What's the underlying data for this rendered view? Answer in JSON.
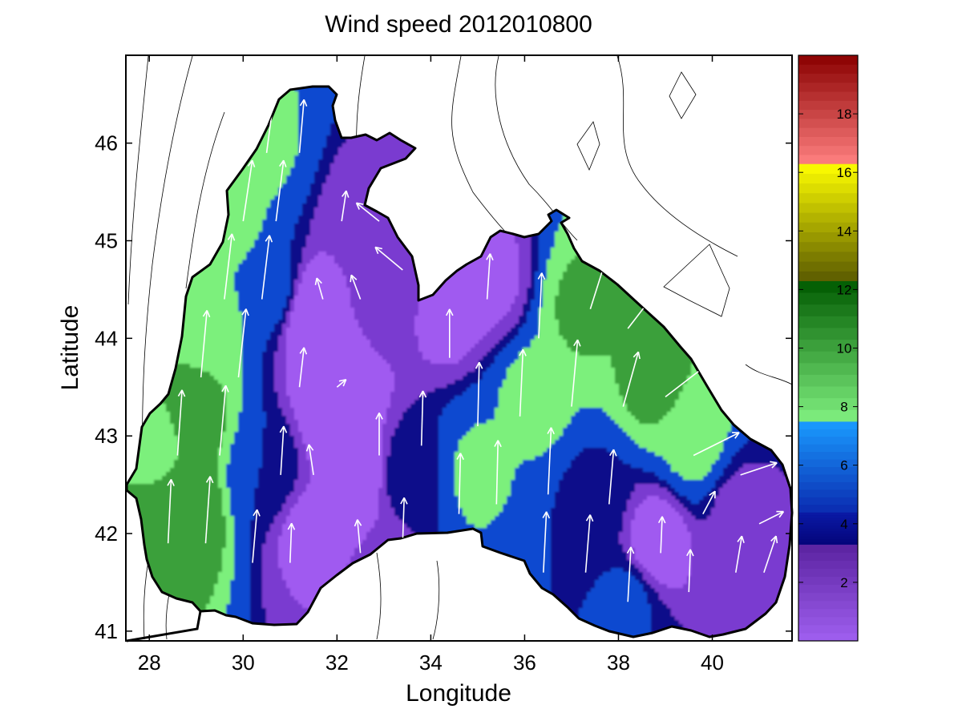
{
  "chart_data": {
    "type": "heatmap",
    "title": "Wind speed 2012010800",
    "xlabel": "Longitude",
    "ylabel": "Latitude",
    "xlim": [
      27.5,
      41.7
    ],
    "ylim": [
      40.9,
      46.9
    ],
    "xticks": [
      28,
      30,
      32,
      34,
      36,
      38,
      40
    ],
    "yticks": [
      41,
      42,
      43,
      44,
      45,
      46
    ],
    "colorbar": {
      "range": [
        0,
        20
      ],
      "ticks": [
        2,
        4,
        6,
        8,
        10,
        12,
        14,
        16,
        18
      ],
      "legend_placement": "right",
      "segments": [
        {
          "from": 0,
          "to": 3.3,
          "color_low": "#a060f0",
          "color_high": "#5a22a0"
        },
        {
          "from": 3.3,
          "to": 4.4,
          "color_low": "#04047a",
          "color_high": "#0a1aa6"
        },
        {
          "from": 4.4,
          "to": 7.5,
          "color_low": "#0a2ab0",
          "color_high": "#1a9cff"
        },
        {
          "from": 7.5,
          "to": 12.3,
          "color_low": "#80f080",
          "color_high": "#005a00"
        },
        {
          "from": 12.3,
          "to": 16.3,
          "color_low": "#5a5a00",
          "color_high": "#ffff00"
        },
        {
          "from": 16.3,
          "to": 20,
          "color_low": "#ff8080",
          "color_high": "#8a0000"
        }
      ]
    },
    "contour_levels": [
      {
        "level": 3.3,
        "color": "#7a3ad0"
      },
      {
        "level": 4.4,
        "color": "#07078a"
      },
      {
        "level": 5.5,
        "color": "#0a4ad0"
      },
      {
        "level": 7.5,
        "color": "#7cf07c"
      },
      {
        "level": 9.0,
        "color": "#3aa03a"
      },
      {
        "level": 10.5,
        "color": "#1a6e1a"
      }
    ],
    "speed_field": [
      {
        "lon": 28.8,
        "lat": 42.2,
        "speed": 10.5
      },
      {
        "lon": 29.0,
        "lat": 43.2,
        "speed": 9.5
      },
      {
        "lon": 29.3,
        "lat": 44.2,
        "speed": 8.5
      },
      {
        "lon": 29.8,
        "lat": 45.2,
        "speed": 8.0
      },
      {
        "lon": 30.4,
        "lat": 46.0,
        "speed": 7.8
      },
      {
        "lon": 28.2,
        "lat": 42.9,
        "speed": 8.8
      },
      {
        "lon": 31.5,
        "lat": 44.2,
        "speed": 1.5
      },
      {
        "lon": 32.0,
        "lat": 43.4,
        "speed": 1.2
      },
      {
        "lon": 32.3,
        "lat": 42.6,
        "speed": 2.0
      },
      {
        "lon": 31.3,
        "lat": 42.0,
        "speed": 3.0
      },
      {
        "lon": 32.5,
        "lat": 45.1,
        "speed": 3.5
      },
      {
        "lon": 33.0,
        "lat": 44.5,
        "speed": 4.2
      },
      {
        "lon": 34.4,
        "lat": 44.4,
        "speed": 2.5
      },
      {
        "lon": 35.3,
        "lat": 44.6,
        "speed": 3.0
      },
      {
        "lon": 35.0,
        "lat": 42.6,
        "speed": 7.8
      },
      {
        "lon": 36.2,
        "lat": 43.4,
        "speed": 8.0
      },
      {
        "lon": 37.2,
        "lat": 44.3,
        "speed": 9.2
      },
      {
        "lon": 38.8,
        "lat": 43.6,
        "speed": 9.6
      },
      {
        "lon": 39.6,
        "lat": 43.0,
        "speed": 8.2
      },
      {
        "lon": 37.5,
        "lat": 42.3,
        "speed": 5.0
      },
      {
        "lon": 38.8,
        "lat": 41.9,
        "speed": 2.5
      },
      {
        "lon": 40.6,
        "lat": 42.2,
        "speed": 4.0
      },
      {
        "lon": 36.5,
        "lat": 41.6,
        "speed": 5.5
      },
      {
        "lon": 38.2,
        "lat": 41.3,
        "speed": 5.8
      },
      {
        "lon": 30.6,
        "lat": 44.5,
        "speed": 6.0
      },
      {
        "lon": 30.5,
        "lat": 42.6,
        "speed": 5.5
      },
      {
        "lon": 33.6,
        "lat": 42.6,
        "speed": 5.0
      },
      {
        "lon": 33.0,
        "lat": 41.6,
        "speed": 3.5
      }
    ],
    "wind_vectors": [
      {
        "lon": 28.4,
        "lat": 41.9,
        "u": 0.2,
        "v": 4.2
      },
      {
        "lon": 29.2,
        "lat": 41.9,
        "u": 0.3,
        "v": 4.4
      },
      {
        "lon": 28.6,
        "lat": 42.8,
        "u": 0.3,
        "v": 4.3
      },
      {
        "lon": 29.5,
        "lat": 42.8,
        "u": 0.4,
        "v": 4.6
      },
      {
        "lon": 29.1,
        "lat": 43.6,
        "u": 0.4,
        "v": 4.4
      },
      {
        "lon": 29.9,
        "lat": 43.6,
        "u": 0.5,
        "v": 4.5
      },
      {
        "lon": 29.6,
        "lat": 44.4,
        "u": 0.5,
        "v": 4.3
      },
      {
        "lon": 30.4,
        "lat": 44.4,
        "u": 0.5,
        "v": 4.2
      },
      {
        "lon": 30.0,
        "lat": 45.2,
        "u": 0.6,
        "v": 4.0
      },
      {
        "lon": 30.7,
        "lat": 45.2,
        "u": 0.5,
        "v": 4.0
      },
      {
        "lon": 30.5,
        "lat": 45.9,
        "u": 0.5,
        "v": 3.8
      },
      {
        "lon": 31.2,
        "lat": 45.9,
        "u": 0.3,
        "v": 3.5
      },
      {
        "lon": 30.2,
        "lat": 41.7,
        "u": 0.3,
        "v": 3.5
      },
      {
        "lon": 31.0,
        "lat": 41.7,
        "u": 0.1,
        "v": 2.6
      },
      {
        "lon": 30.8,
        "lat": 42.6,
        "u": 0.2,
        "v": 3.2
      },
      {
        "lon": 31.5,
        "lat": 42.6,
        "u": -0.3,
        "v": 2.0
      },
      {
        "lon": 31.2,
        "lat": 43.5,
        "u": 0.3,
        "v": 2.6
      },
      {
        "lon": 32.0,
        "lat": 43.5,
        "u": 0.6,
        "v": 0.5
      },
      {
        "lon": 31.7,
        "lat": 44.4,
        "u": -0.4,
        "v": 1.4
      },
      {
        "lon": 32.5,
        "lat": 44.4,
        "u": -0.6,
        "v": 1.6
      },
      {
        "lon": 32.1,
        "lat": 45.2,
        "u": 0.3,
        "v": 2.0
      },
      {
        "lon": 32.9,
        "lat": 45.2,
        "u": -1.5,
        "v": 1.2
      },
      {
        "lon": 33.4,
        "lat": 44.7,
        "u": -1.8,
        "v": 1.5
      },
      {
        "lon": 32.5,
        "lat": 41.8,
        "u": -0.2,
        "v": 2.2
      },
      {
        "lon": 33.4,
        "lat": 41.9,
        "u": 0.1,
        "v": 3.0
      },
      {
        "lon": 32.9,
        "lat": 42.8,
        "u": 0.0,
        "v": 2.8
      },
      {
        "lon": 33.8,
        "lat": 42.9,
        "u": 0.1,
        "v": 3.6
      },
      {
        "lon": 34.4,
        "lat": 43.8,
        "u": 0.0,
        "v": 3.2
      },
      {
        "lon": 35.2,
        "lat": 44.4,
        "u": 0.2,
        "v": 3.0
      },
      {
        "lon": 34.6,
        "lat": 42.2,
        "u": 0.1,
        "v": 4.0
      },
      {
        "lon": 35.4,
        "lat": 42.3,
        "u": 0.1,
        "v": 4.2
      },
      {
        "lon": 35.0,
        "lat": 43.1,
        "u": 0.1,
        "v": 4.2
      },
      {
        "lon": 35.9,
        "lat": 43.2,
        "u": 0.2,
        "v": 4.4
      },
      {
        "lon": 36.3,
        "lat": 44.0,
        "u": 0.2,
        "v": 4.3
      },
      {
        "lon": 36.5,
        "lat": 42.4,
        "u": 0.2,
        "v": 4.4
      },
      {
        "lon": 37.0,
        "lat": 43.3,
        "u": 0.4,
        "v": 4.4
      },
      {
        "lon": 37.4,
        "lat": 44.3,
        "u": 1.2,
        "v": 3.8
      },
      {
        "lon": 38.2,
        "lat": 44.1,
        "u": 2.0,
        "v": 2.6
      },
      {
        "lon": 38.1,
        "lat": 43.3,
        "u": 1.0,
        "v": 3.6
      },
      {
        "lon": 39.0,
        "lat": 43.4,
        "u": 2.6,
        "v": 2.0
      },
      {
        "lon": 39.6,
        "lat": 42.8,
        "u": 3.0,
        "v": 1.5
      },
      {
        "lon": 40.6,
        "lat": 42.6,
        "u": 2.4,
        "v": 0.8
      },
      {
        "lon": 41.0,
        "lat": 42.1,
        "u": 1.6,
        "v": 0.8
      },
      {
        "lon": 36.4,
        "lat": 41.6,
        "u": 0.2,
        "v": 4.0
      },
      {
        "lon": 37.3,
        "lat": 41.6,
        "u": 0.3,
        "v": 3.8
      },
      {
        "lon": 37.8,
        "lat": 42.3,
        "u": 0.3,
        "v": 3.6
      },
      {
        "lon": 38.2,
        "lat": 41.3,
        "u": 0.2,
        "v": 3.6
      },
      {
        "lon": 38.9,
        "lat": 41.8,
        "u": 0.1,
        "v": 2.4
      },
      {
        "lon": 39.5,
        "lat": 41.4,
        "u": 0.1,
        "v": 2.8
      },
      {
        "lon": 39.8,
        "lat": 42.2,
        "u": 0.8,
        "v": 1.5
      },
      {
        "lon": 40.5,
        "lat": 41.6,
        "u": 0.4,
        "v": 2.4
      },
      {
        "lon": 41.1,
        "lat": 41.6,
        "u": 0.8,
        "v": 2.4
      }
    ]
  }
}
